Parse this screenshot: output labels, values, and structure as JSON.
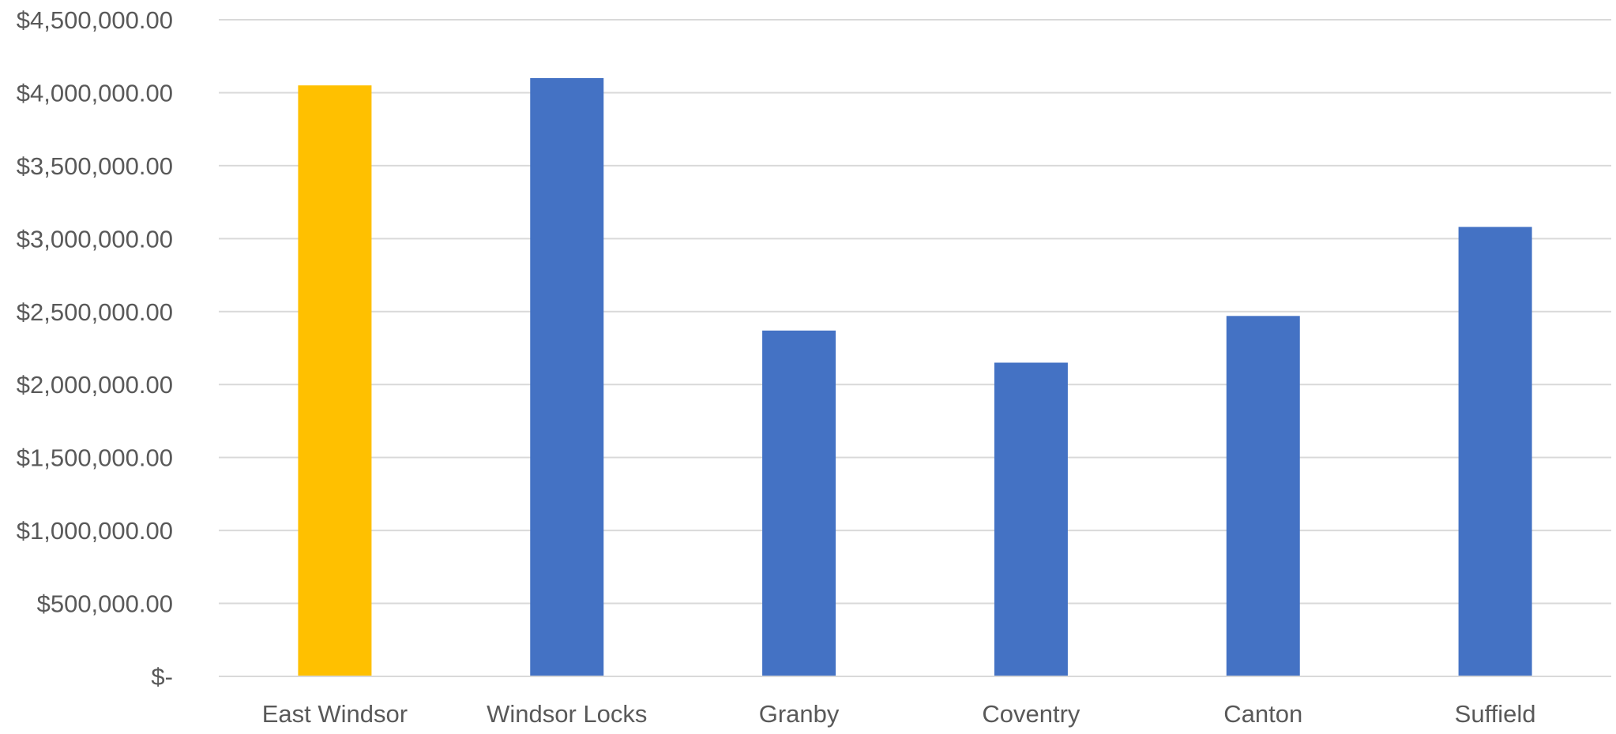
{
  "chart_data": {
    "type": "bar",
    "title": "",
    "xlabel": "",
    "ylabel": "",
    "categories": [
      "East Windsor",
      "Windsor Locks",
      "Granby",
      "Coventry",
      "Canton",
      "Suffield"
    ],
    "series": [
      {
        "values": [
          4050000,
          4100000,
          2370000,
          2150000,
          2470000,
          3080000
        ]
      }
    ],
    "bar_colors": [
      "#FFC000",
      "#4472C4",
      "#4472C4",
      "#4472C4",
      "#4472C4",
      "#4472C4"
    ],
    "ylim": [
      0,
      4500000
    ],
    "y_ticks": [
      0,
      500000,
      1000000,
      1500000,
      2000000,
      2500000,
      3000000,
      3500000,
      4000000,
      4500000
    ],
    "y_tick_labels": [
      "$-",
      "$500,000.00",
      "$1,000,000.00",
      "$1,500,000.00",
      "$2,000,000.00",
      "$2,500,000.00",
      "$3,000,000.00",
      "$3,500,000.00",
      "$4,000,000.00",
      "$4,500,000.00"
    ],
    "grid": true,
    "legend": "none"
  }
}
